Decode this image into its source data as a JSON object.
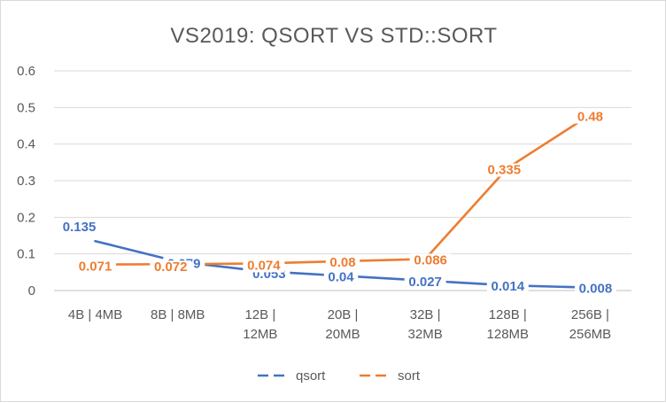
{
  "chart_data": {
    "type": "line",
    "title": "VS2019: QSORT VS STD::SORT",
    "xlabel": "",
    "ylabel": "",
    "categories": [
      [
        "4B | 4MB"
      ],
      [
        "8B | 8MB"
      ],
      [
        "12B |",
        "12MB"
      ],
      [
        "20B |",
        "20MB"
      ],
      [
        "32B |",
        "32MB"
      ],
      [
        "128B |",
        "128MB"
      ],
      [
        "256B |",
        "256MB"
      ]
    ],
    "yticks": [
      "0",
      "0.1",
      "0.2",
      "0.3",
      "0.4",
      "0.5",
      "0.6"
    ],
    "ylim": [
      0,
      0.6
    ],
    "grid": true,
    "legend_position": "bottom",
    "series": [
      {
        "name": "qsort",
        "color": "#4472C4",
        "values": [
          0.135,
          0.079,
          0.053,
          0.04,
          0.027,
          0.014,
          0.008
        ],
        "labels": [
          "0.135",
          "0.079",
          "0.053",
          "0.04",
          "0.027",
          "0.014",
          "0.008"
        ]
      },
      {
        "name": "sort",
        "color": "#ED7D31",
        "values": [
          0.071,
          0.072,
          0.074,
          0.08,
          0.086,
          0.335,
          0.48
        ],
        "labels": [
          "0.071",
          "0.072",
          "0.074",
          "0.08",
          "0.086",
          "0.335",
          "0.48"
        ]
      }
    ]
  }
}
